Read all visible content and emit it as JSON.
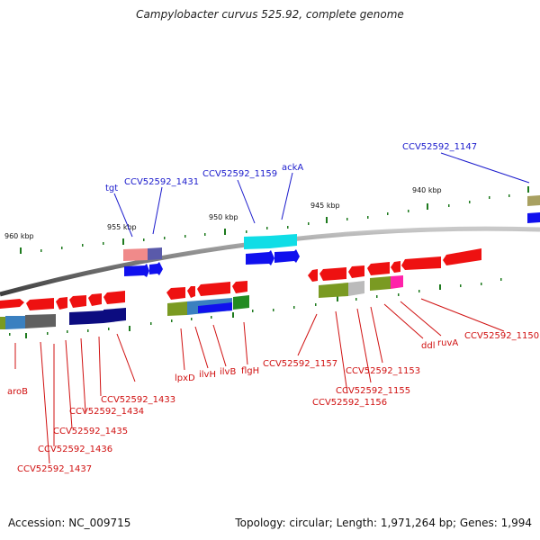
{
  "title": "Campylobacter curvus 525.92, complete genome",
  "footer": {
    "accession": "Accession: NC_009715",
    "topology": "Topology: circular; Length: 1,971,264 bp; Genes: 1,994"
  },
  "scale": {
    "kbp_960": "960 kbp",
    "kbp_955": "955 kbp",
    "kbp_950": "950 kbp",
    "kbp_945": "945 kbp",
    "kbp_940": "940 kbp"
  },
  "labels_top": {
    "tgt": "tgt",
    "ccv1431": "CCV52592_1431",
    "ccv1159": "CCV52592_1159",
    "ackA": "ackA",
    "ccv1147": "CCV52592_1147"
  },
  "labels_bottom": {
    "aroB": "aroB",
    "ccv1433": "CCV52592_1433",
    "ccv1434": "CCV52592_1434",
    "ccv1435": "CCV52592_1435",
    "ccv1436": "CCV52592_1436",
    "ccv1437": "CCV52592_1437",
    "lpxD": "lpxD",
    "ilvH": "ilvH",
    "ilvB": "ilvB",
    "flgH": "flgH",
    "ccv1157": "CCV52592_1157",
    "ccv1156": "CCV52592_1156",
    "ccv1155": "CCV52592_1155",
    "ccv1153": "CCV52592_1153",
    "ddl": "ddl",
    "ruvA": "ruvA",
    "ccv1150": "CCV52592_1150"
  },
  "colors": {
    "backbone": "#8a8a8a",
    "gene_red": "#ee1111",
    "gene_blue": "#1010ee",
    "gene_navy": "#0c0c80",
    "gene_cyan": "#10dde6",
    "gene_olive": "#7a9a22",
    "gene_pink": "#ff22aa",
    "gene_salmon": "#f08a8a",
    "tick_green": "#1e7a1e",
    "label_blue": "#1a1acc",
    "label_red": "#d01010"
  }
}
